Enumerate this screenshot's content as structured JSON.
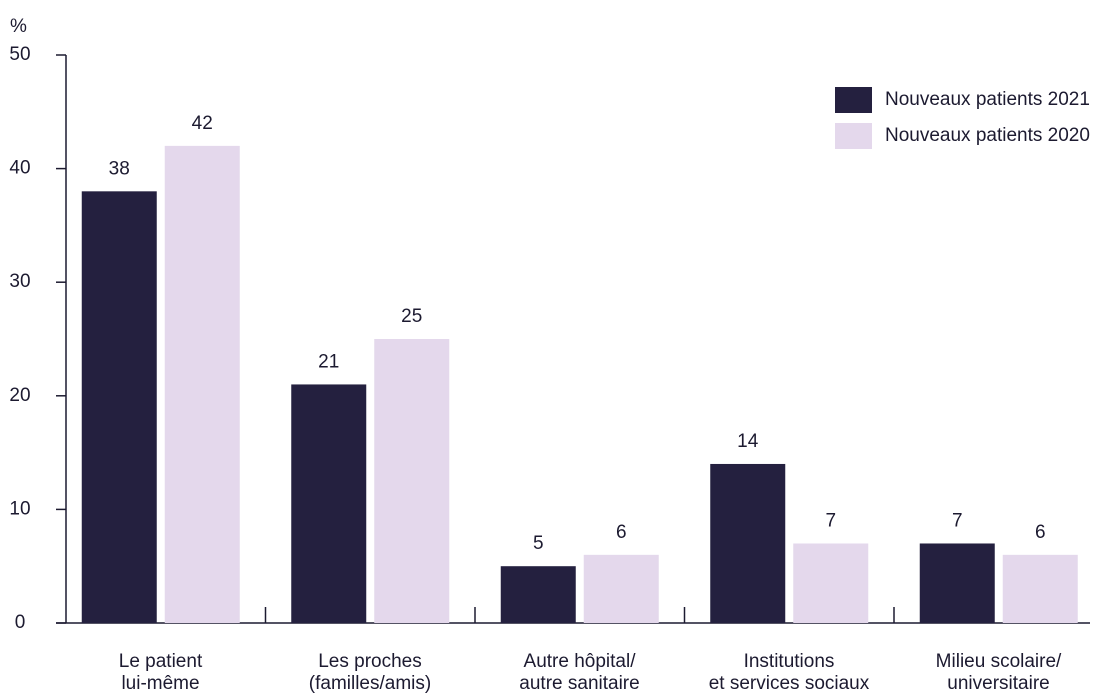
{
  "chart_data": {
    "type": "bar",
    "y_label": "%",
    "categories": [
      "Le patient\nlui-même",
      "Les proches\n(familles/amis)",
      "Autre hôpital/\nautre sanitaire",
      "Institutions\net services sociaux",
      "Milieu scolaire/\nuniversitaire"
    ],
    "series": [
      {
        "name": "Nouveaux patients 2021",
        "color": "#24203f",
        "values": [
          38,
          21,
          5,
          14,
          7
        ]
      },
      {
        "name": "Nouveaux patients 2020",
        "color": "#e4d8ec",
        "values": [
          42,
          25,
          6,
          7,
          6
        ]
      }
    ],
    "ylim": [
      0,
      50
    ],
    "yticks": [
      0,
      10,
      20,
      30,
      40,
      50
    ],
    "legend": "upper right"
  }
}
